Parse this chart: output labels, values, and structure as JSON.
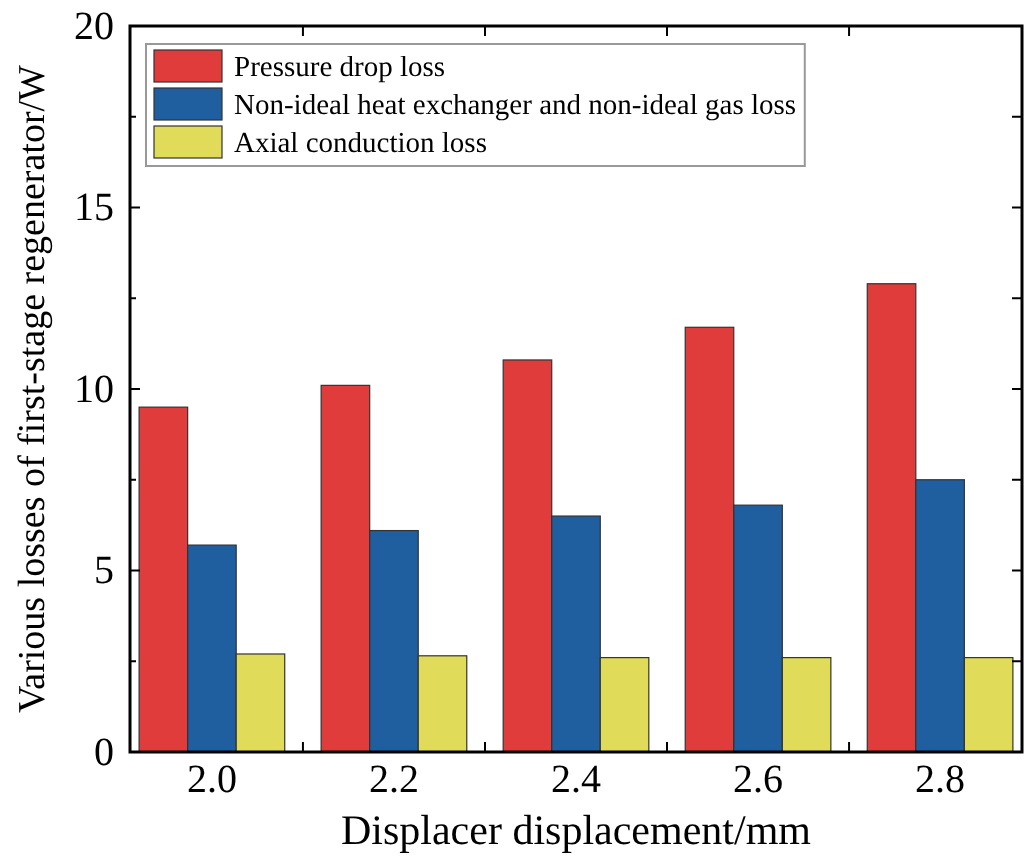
{
  "chart_data": {
    "type": "bar",
    "xlabel": "Displacer displacement/mm",
    "ylabel": "Various losses of first-stage regenerator/W",
    "categories": [
      "2.0",
      "2.2",
      "2.4",
      "2.6",
      "2.8"
    ],
    "series": [
      {
        "name": "Pressure drop loss",
        "color": "#e03c3c",
        "values": [
          9.5,
          10.1,
          10.8,
          11.7,
          12.9
        ]
      },
      {
        "name": "Non-ideal heat exchanger and non-ideal gas loss",
        "color": "#1f5fa0",
        "values": [
          5.7,
          6.1,
          6.5,
          6.8,
          7.5
        ]
      },
      {
        "name": "Axial conduction loss",
        "color": "#e0dc5a",
        "values": [
          2.7,
          2.65,
          2.6,
          2.6,
          2.6
        ]
      }
    ],
    "ylim": [
      0,
      20
    ],
    "yticks": [
      0,
      {
        "value": 2.5,
        "label": null
      },
      5,
      {
        "value": 7.5,
        "label": null
      },
      10,
      {
        "value": 12.5,
        "label": null
      },
      15,
      {
        "value": 17.5,
        "label": null
      },
      20
    ],
    "grid": false,
    "legend": "top left"
  }
}
